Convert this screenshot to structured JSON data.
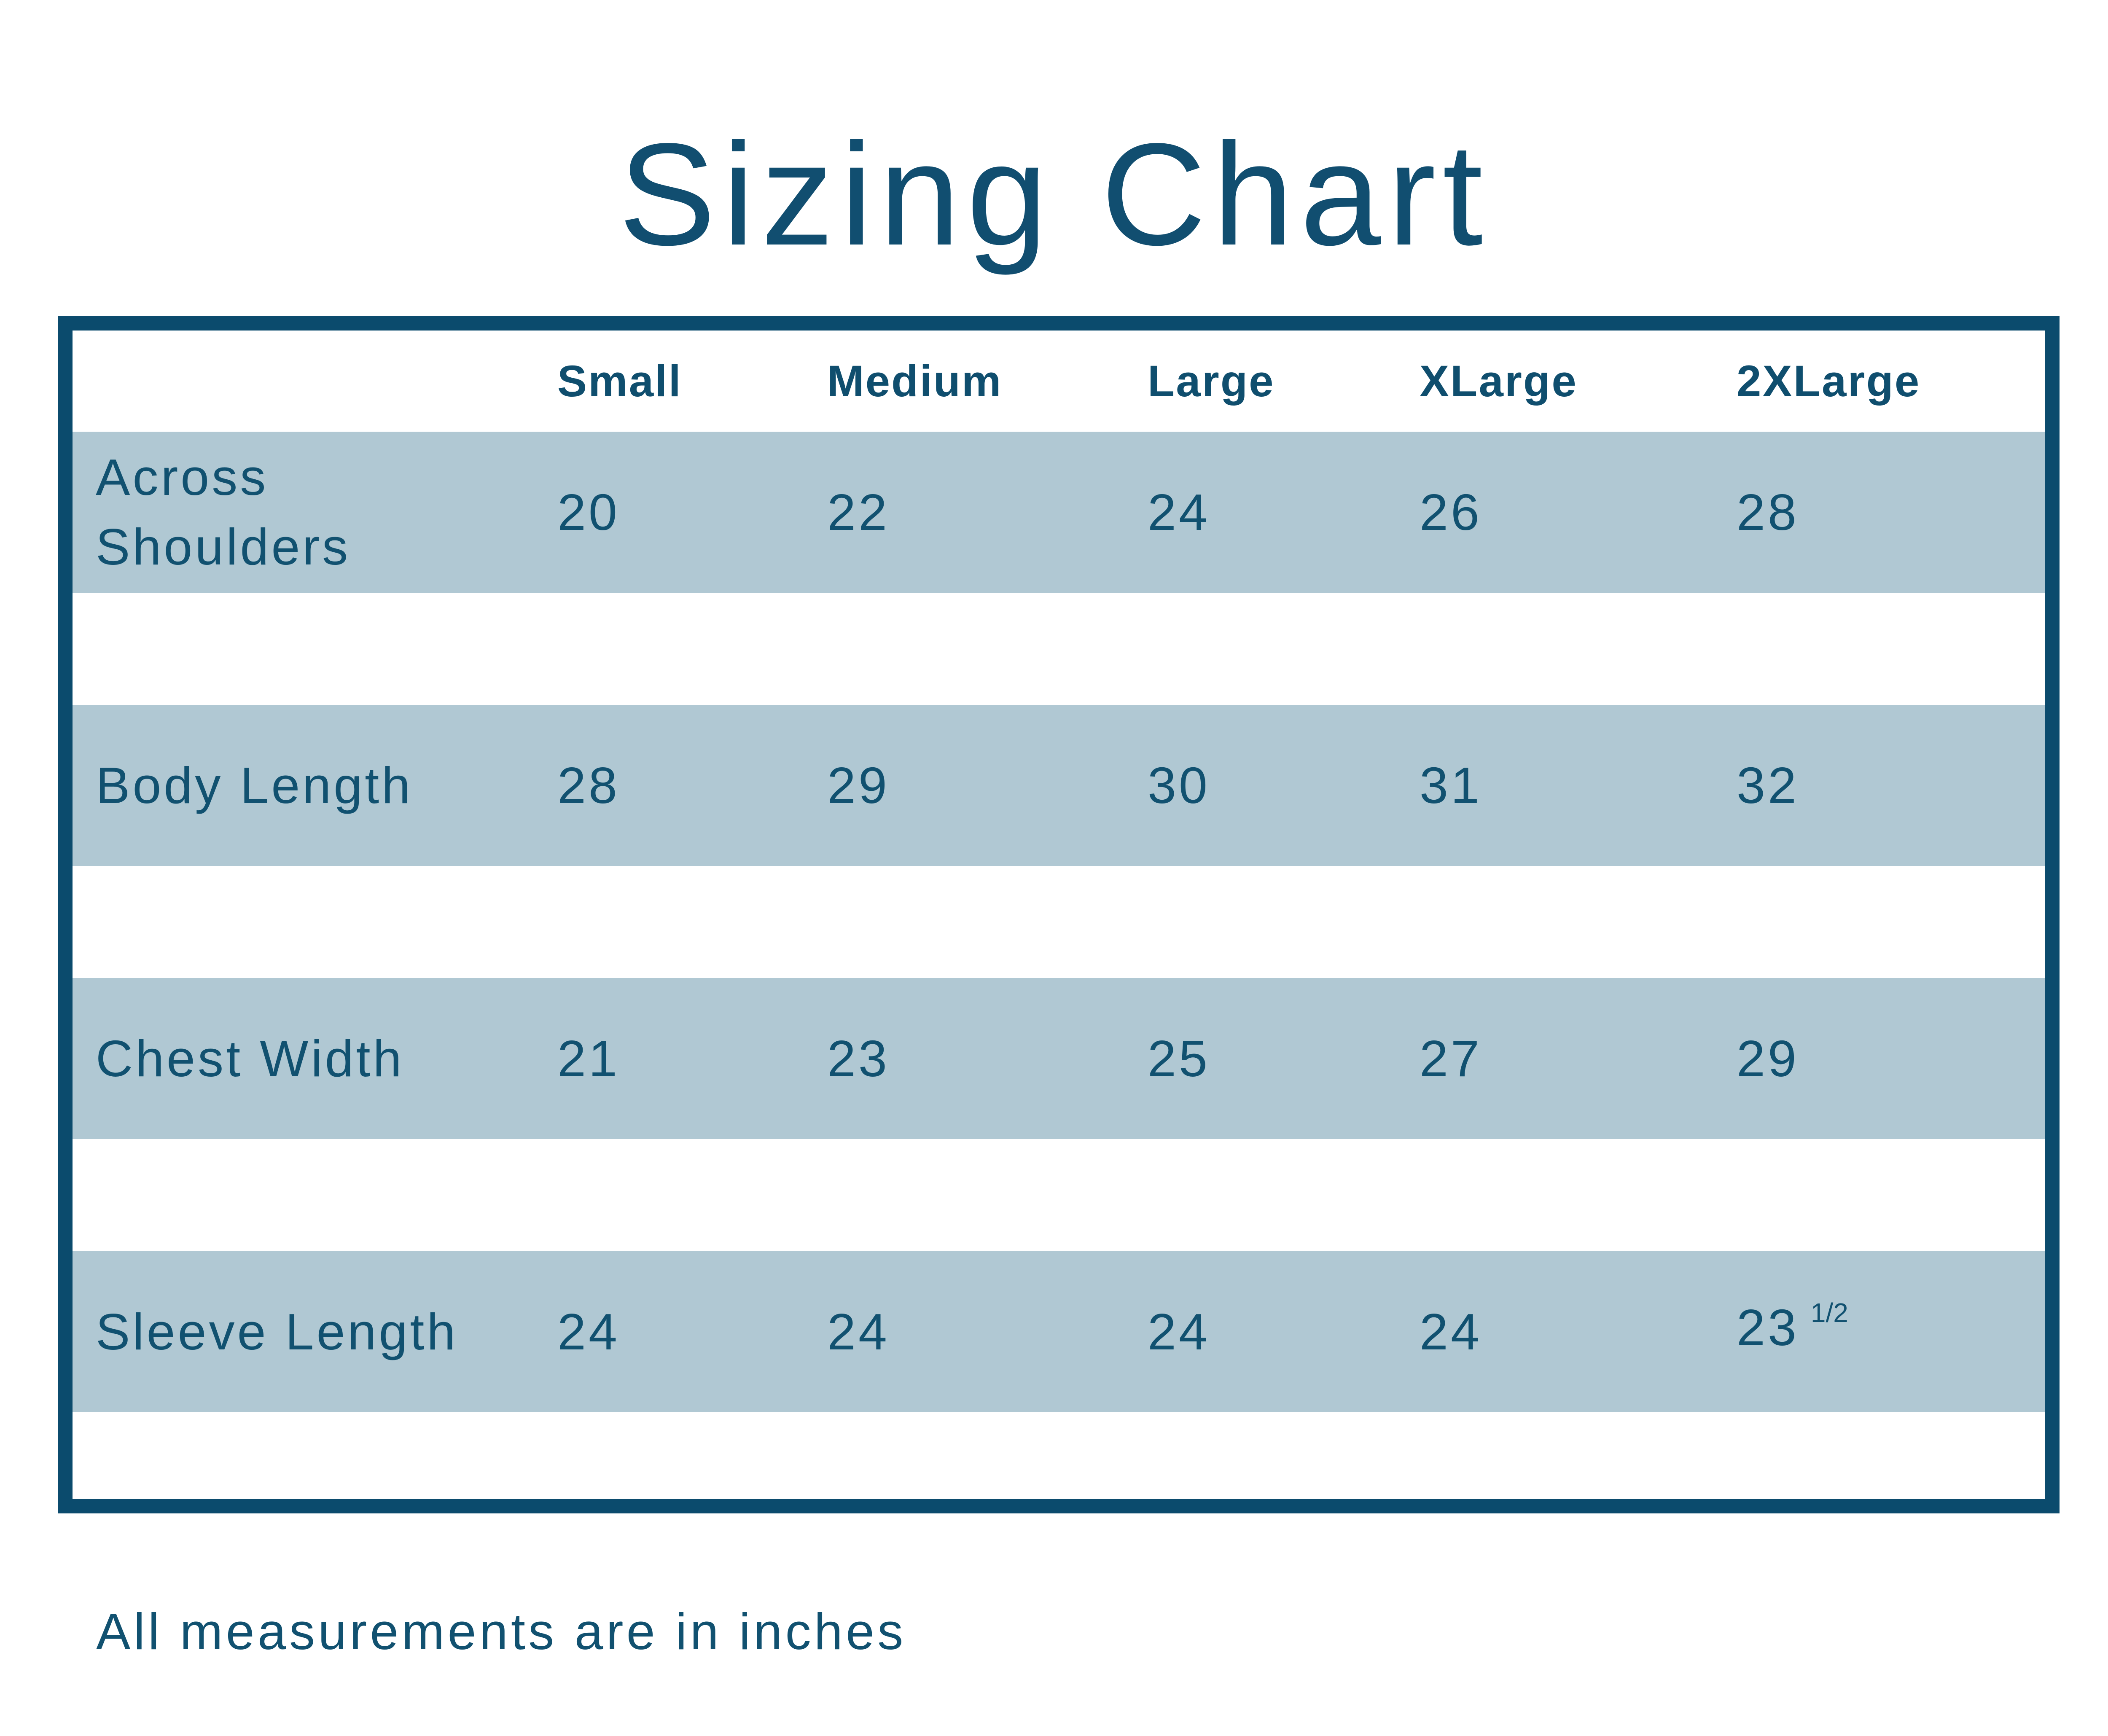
{
  "title": "Sizing Chart",
  "footer_note": "All measurements are in inches",
  "colors": {
    "accent_text": "#115170",
    "border": "#0b4b6d",
    "stripe": "#b0c8d3",
    "background": "#ffffff"
  },
  "table": {
    "column_headers": [
      "Small",
      "Medium",
      "Large",
      "XLarge",
      "2XLarge"
    ],
    "rows": [
      {
        "label": "Across Shoulders",
        "values": [
          "20",
          "22",
          "24",
          "26",
          "28"
        ]
      },
      {
        "label": "Body Length",
        "values": [
          "28",
          "29",
          "30",
          "31",
          "32"
        ]
      },
      {
        "label": "Chest Width",
        "values": [
          "21",
          "23",
          "25",
          "27",
          "29"
        ]
      },
      {
        "label": "Sleeve Length",
        "values": [
          "24",
          "24",
          "24",
          "24",
          "23"
        ],
        "last_value_fraction": "1/2"
      }
    ]
  },
  "chart_data": {
    "type": "table",
    "title": "Sizing Chart",
    "columns": [
      "Small",
      "Medium",
      "Large",
      "XLarge",
      "2XLarge"
    ],
    "rows": [
      {
        "label": "Across Shoulders",
        "values": [
          20,
          22,
          24,
          26,
          28
        ]
      },
      {
        "label": "Body Length",
        "values": [
          28,
          29,
          30,
          31,
          32
        ]
      },
      {
        "label": "Chest Width",
        "values": [
          21,
          23,
          25,
          27,
          29
        ]
      },
      {
        "label": "Sleeve Length",
        "values": [
          24,
          24,
          24,
          24,
          23.5
        ]
      }
    ],
    "note": "All measurements are in inches",
    "units": "inches"
  }
}
